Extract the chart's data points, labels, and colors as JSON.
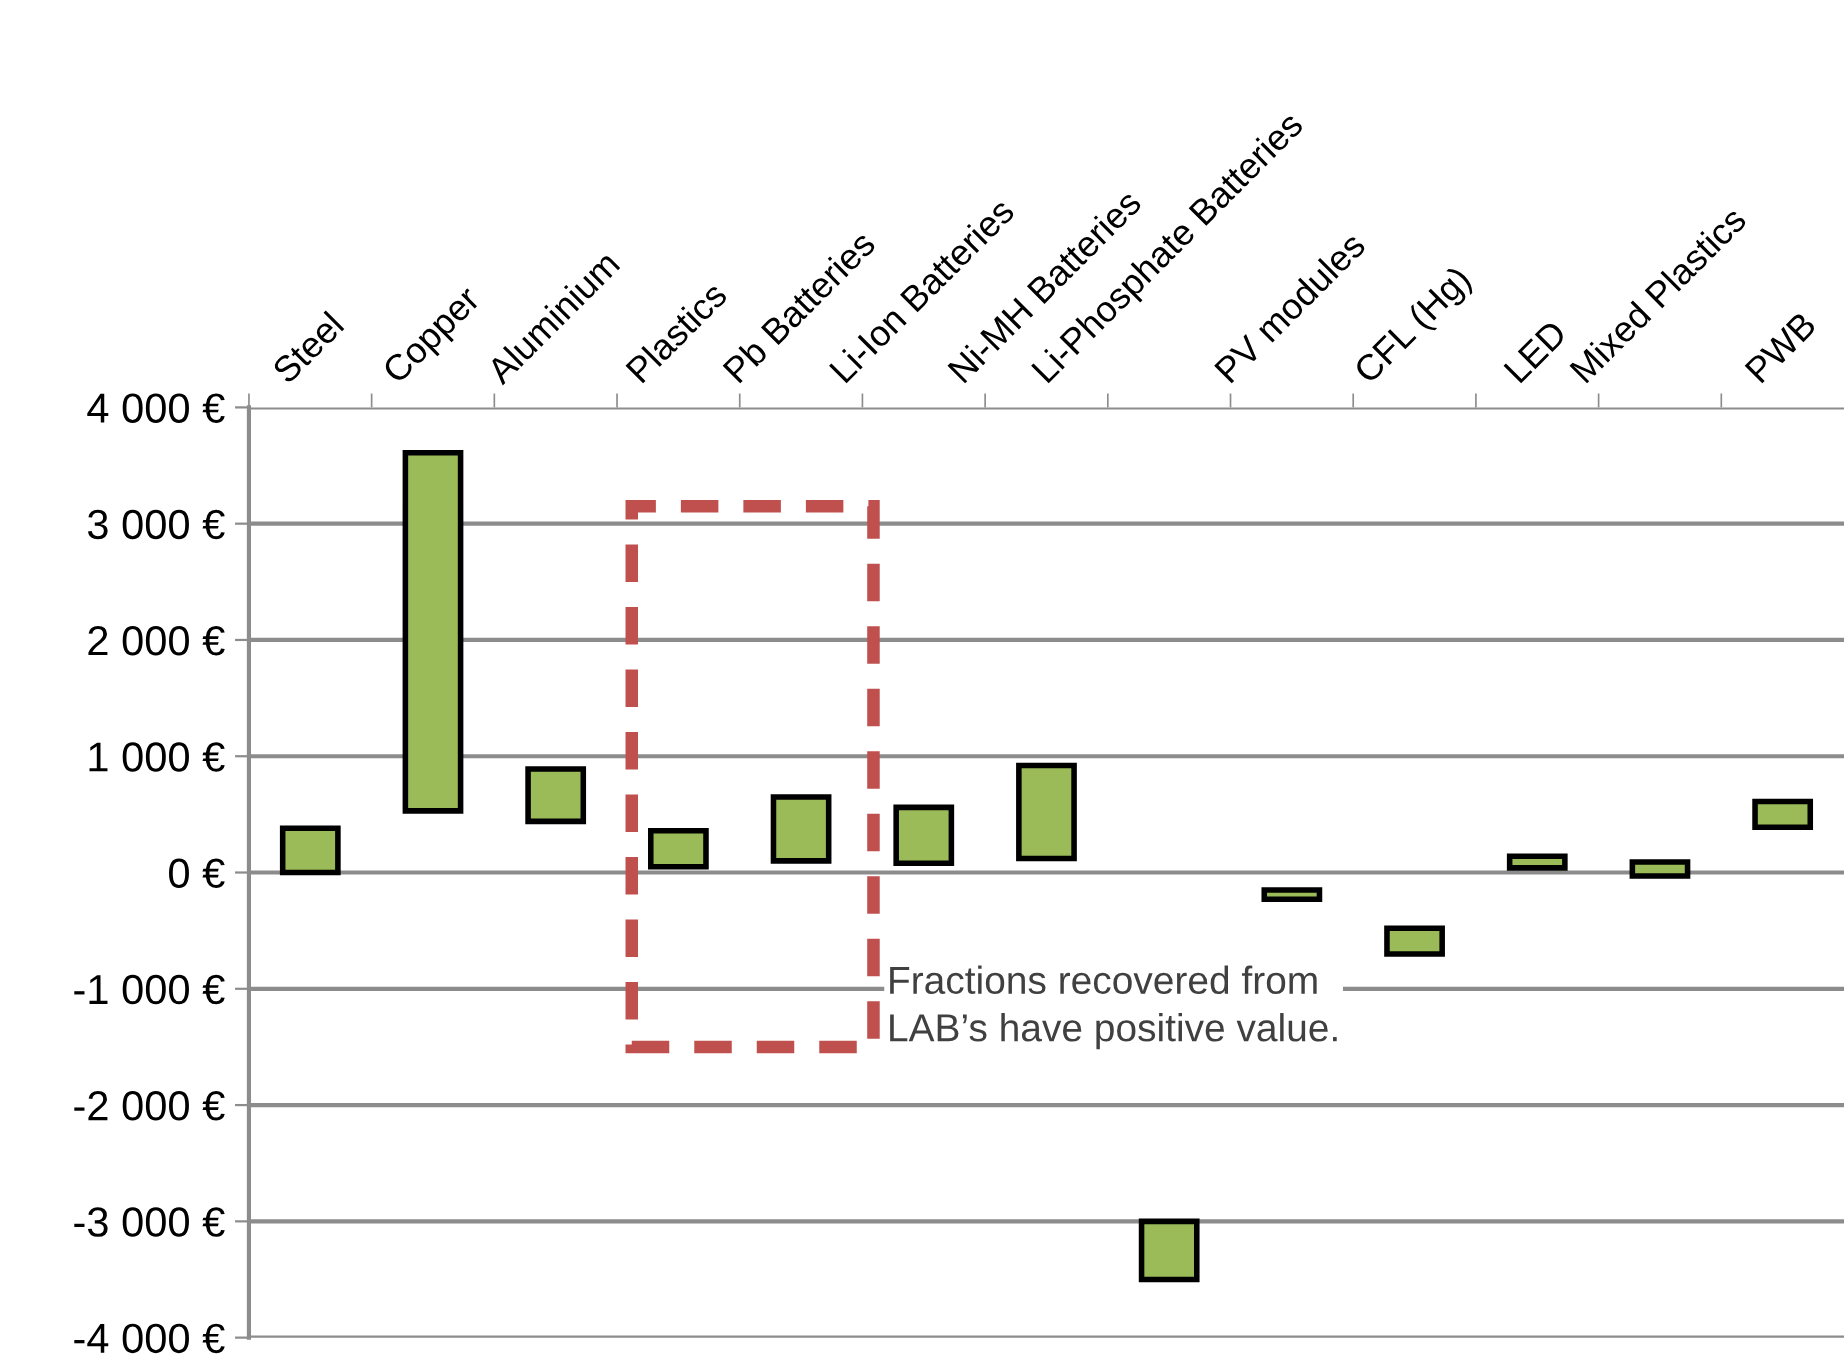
{
  "chart_data": {
    "type": "bar",
    "categories": [
      "Steel",
      "Copper",
      "Aluminium",
      "Plastics",
      "Pb Batteries",
      "Li-Ion Batteries",
      "Ni-MH Batteries",
      "Li-Phosphate Batteries",
      "PV modules",
      "CFL (Hg)",
      "LED",
      "Mixed Plastics",
      "PWB"
    ],
    "base": [
      0,
      530,
      440,
      50,
      100,
      80,
      120,
      -3500,
      -230,
      -700,
      40,
      -30,
      390
    ],
    "values": [
      380,
      3080,
      450,
      310,
      550,
      480,
      800,
      500,
      80,
      220,
      100,
      120,
      220
    ],
    "color": "#9bbb59",
    "ylim": [
      -4000,
      4000
    ],
    "yticks": [
      {
        "value": -4000,
        "label": "-4 000 €"
      },
      {
        "value": -3000,
        "label": "-3 000 €"
      },
      {
        "value": -2000,
        "label": "-2 000 €"
      },
      {
        "value": -1000,
        "label": "-1 000 €"
      },
      {
        "value": 0,
        "label": "0 €"
      },
      {
        "value": 1000,
        "label": "1 000 €"
      },
      {
        "value": 2000,
        "label": "2 000 €"
      },
      {
        "value": 3000,
        "label": "3 000 €"
      },
      {
        "value": 4000,
        "label": "4 000 €"
      }
    ],
    "grid": "y",
    "annotations": [
      "Fractions recovered from\nLAB’s have positive value."
    ]
  }
}
